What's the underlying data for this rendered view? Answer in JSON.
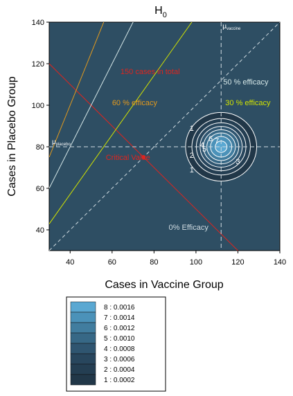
{
  "chart_data": {
    "type": "contour",
    "title": "H",
    "title_subscript": "0",
    "xlabel": "Cases in Vaccine Group",
    "ylabel": "Cases in Placebo Group",
    "xlim": [
      30,
      140
    ],
    "ylim": [
      30,
      140
    ],
    "x_ticks": [
      40,
      60,
      80,
      100,
      120,
      140
    ],
    "y_ticks": [
      40,
      60,
      80,
      100,
      120,
      140
    ],
    "grid": false,
    "colors": {
      "background": "#2e4e63",
      "total_line": "#e0241e",
      "efficacy60": "#e39a1d",
      "efficacy50": "#d6e8e8",
      "efficacy30": "#d2e400",
      "efficacy0": "#d0dce2",
      "mu_lines": "#d0dce2",
      "contour_lines": "#ffffff",
      "critical_point": "#e0241e"
    },
    "mean": {
      "x": 112,
      "y": 80
    },
    "mu_vaccine": {
      "label": "μ",
      "subscript": "vaccine",
      "x": 112
    },
    "mu_placebo": {
      "label": "μ",
      "subscript": "placebo",
      "y": 80
    },
    "lines": [
      {
        "name": "150 cases in total",
        "equation": "x + y = 150",
        "color_key": "total_line",
        "dashed": false,
        "label_x": 64,
        "label_y": 115
      },
      {
        "name": "60 % efficacy",
        "equation": "y = 2.5x",
        "color_key": "efficacy60",
        "dashed": false,
        "label_x": 60,
        "label_y": 100
      },
      {
        "name": "50 % efficacy",
        "equation": "y = 2x",
        "color_key": "efficacy50",
        "dashed": false,
        "label_x": 113,
        "label_y": 110
      },
      {
        "name": "30 % efficacy",
        "equation": "y = x/0.7",
        "color_key": "efficacy30",
        "dashed": false,
        "label_x": 114,
        "label_y": 100
      },
      {
        "name": "0% Efficacy",
        "equation": "y = x",
        "color_key": "efficacy0",
        "dashed": true,
        "label_x": 87,
        "label_y": 40
      }
    ],
    "critical_value": {
      "label": "Critical Value",
      "x": 75,
      "y": 75,
      "label_x": 57,
      "label_y": 75
    },
    "contours": {
      "levels": [
        1,
        2,
        3,
        4,
        5,
        6,
        7,
        8
      ],
      "level_values": [
        0.0002,
        0.0004,
        0.0006,
        0.0008,
        0.001,
        0.0012,
        0.0014,
        0.0016
      ],
      "level_labels": [
        "1 : 0.0002",
        "2 : 0.0004",
        "3 : 0.0006",
        "4 : 0.0008",
        "5 : 0.0010",
        "6 : 0.0012",
        "7 : 0.0014",
        "8 : 0.0016"
      ],
      "level_colors": [
        "#213748",
        "#243e52",
        "#28465d",
        "#2f5570",
        "#376886",
        "#417d9f",
        "#4b92b9",
        "#5aa8d2"
      ],
      "inline_labels": [
        {
          "text": "1",
          "x": 98,
          "y": 89
        },
        {
          "text": "2",
          "x": 98,
          "y": 76
        },
        {
          "text": "3",
          "x": 120,
          "y": 73
        },
        {
          "text": "1",
          "x": 98,
          "y": 69
        },
        {
          "text": "4",
          "x": 103,
          "y": 81
        },
        {
          "text": "5",
          "x": 104,
          "y": 79
        },
        {
          "text": "6",
          "x": 107,
          "y": 84
        },
        {
          "text": "7",
          "x": 110,
          "y": 83
        }
      ]
    }
  }
}
